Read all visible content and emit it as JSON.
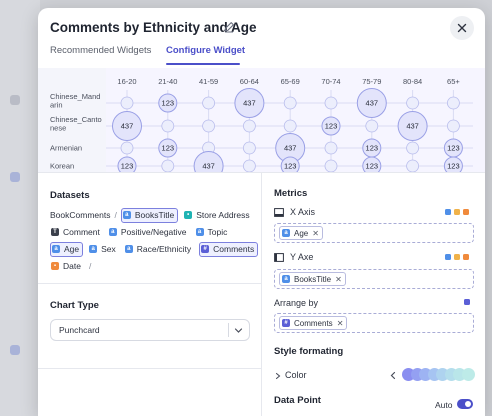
{
  "header": {
    "title": "Comments by Ethnicity and Age"
  },
  "tabs": [
    {
      "label": "Recommended Widgets",
      "active": false
    },
    {
      "label": "Configure Widget",
      "active": true
    }
  ],
  "chart_data": {
    "type": "punchcard",
    "x_categories": [
      "16-20",
      "21-40",
      "41-59",
      "60-64",
      "65-69",
      "70-74",
      "75-79",
      "80-84",
      "65+"
    ],
    "y_categories": [
      {
        "lines": [
          "Chinese_Mand",
          "arin"
        ]
      },
      {
        "lines": [
          "Chinese_Canto",
          "nese"
        ]
      },
      {
        "lines": [
          "Armenian"
        ]
      },
      {
        "lines": [
          "Korean"
        ]
      }
    ],
    "points": [
      {
        "x": 1,
        "y": 0,
        "value": 123
      },
      {
        "x": 3,
        "y": 0,
        "value": 437
      },
      {
        "x": 6,
        "y": 0,
        "value": 437
      },
      {
        "x": 0,
        "y": 1,
        "value": 437
      },
      {
        "x": 5,
        "y": 1,
        "value": 123
      },
      {
        "x": 7,
        "y": 1,
        "value": 437
      },
      {
        "x": 1,
        "y": 2,
        "value": 123
      },
      {
        "x": 4,
        "y": 2,
        "value": 437
      },
      {
        "x": 6,
        "y": 2,
        "value": 123
      },
      {
        "x": 8,
        "y": 2,
        "value": 123
      },
      {
        "x": 0,
        "y": 3,
        "value": 123
      },
      {
        "x": 2,
        "y": 3,
        "value": 437
      },
      {
        "x": 4,
        "y": 3,
        "value": 123
      },
      {
        "x": 6,
        "y": 3,
        "value": 123
      },
      {
        "x": 8,
        "y": 3,
        "value": 123
      }
    ],
    "grid": true
  },
  "datasets": {
    "title": "Datasets",
    "rows": [
      [
        {
          "type": "text",
          "label": "BookComments"
        },
        {
          "type": "sep",
          "label": "/"
        },
        {
          "type": "field",
          "label": "BooksTitle",
          "icon": "string-icon",
          "icon_color": "#4f8fe8",
          "selected": true
        },
        {
          "type": "field",
          "label": "Store Address",
          "icon": "location-icon",
          "icon_color": "#1fb3b3",
          "selected": false
        }
      ],
      [
        {
          "type": "field",
          "label": "Comment",
          "icon": "text-icon",
          "icon_color": "#3a3f4b",
          "selected": false
        },
        {
          "type": "field",
          "label": "Positive/Negative",
          "icon": "string-icon",
          "icon_color": "#4f8fe8",
          "selected": false
        },
        {
          "type": "field",
          "label": "Topic",
          "icon": "string-icon",
          "icon_color": "#4f8fe8",
          "selected": false
        }
      ],
      [
        {
          "type": "field",
          "label": "Age",
          "icon": "string-icon",
          "icon_color": "#4f8fe8",
          "selected": true
        },
        {
          "type": "field",
          "label": "Sex",
          "icon": "string-icon",
          "icon_color": "#4f8fe8",
          "selected": false
        },
        {
          "type": "field",
          "label": "Race/Ethnicity",
          "icon": "string-icon",
          "icon_color": "#4f8fe8",
          "selected": false
        },
        {
          "type": "field",
          "label": "Comments",
          "icon": "measure-icon",
          "icon_color": "#5b5fd6",
          "selected": true
        }
      ],
      [
        {
          "type": "field",
          "label": "Date",
          "icon": "calendar-icon",
          "icon_color": "#f08a3c",
          "selected": false
        },
        {
          "type": "sep",
          "label": "/"
        }
      ]
    ]
  },
  "chart_type": {
    "title": "Chart Type",
    "selected": "Punchcard"
  },
  "metrics": {
    "title": "Metrics",
    "x_axis": {
      "label": "X Axis",
      "chip": "Age",
      "chip_icon": "string-icon",
      "chip_icon_color": "#4f8fe8"
    },
    "y_axis": {
      "label": "Y Axe",
      "chip": "BooksTitle",
      "chip_icon": "string-icon",
      "chip_icon_color": "#4f8fe8"
    },
    "arrange_by": {
      "label": "Arrange by",
      "chip": "Comments",
      "chip_icon": "measure-icon",
      "chip_icon_color": "#5b5fd6"
    }
  },
  "style": {
    "title": "Style formating",
    "color_label": "Color",
    "palette": [
      "#8a8ef0",
      "#94a0f2",
      "#9db3f3",
      "#a6c4f2",
      "#aed3ef",
      "#b4deec",
      "#b9e6e9",
      "#bdebe8"
    ]
  },
  "data_point": {
    "title": "Data Point",
    "toggle_label": "Auto",
    "toggle_on": true
  },
  "colors": {
    "accent": "#4b4fc9",
    "bubble_fill": "#e3e4fb",
    "bubble_stroke": "#9aa0e6"
  }
}
